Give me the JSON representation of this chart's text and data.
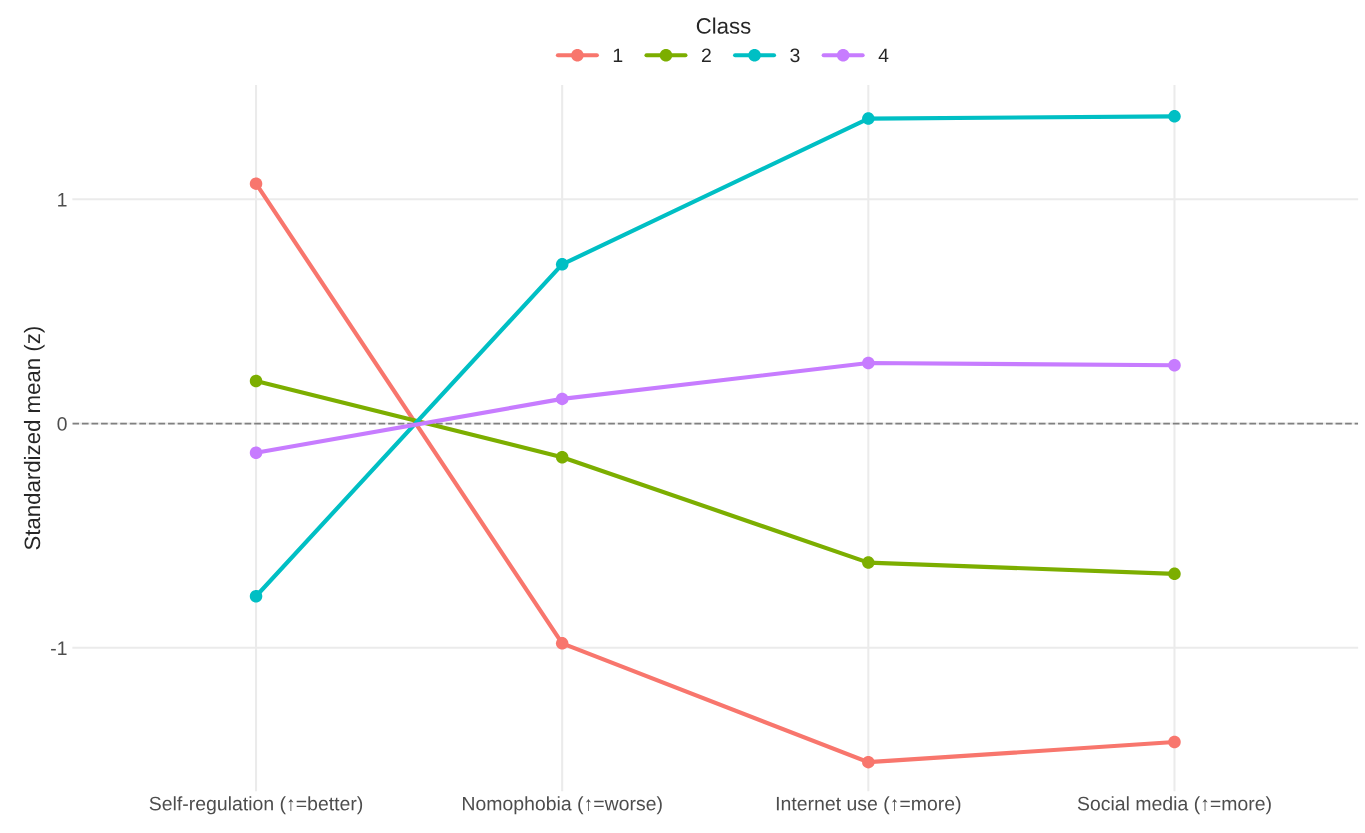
{
  "chart_data": {
    "type": "line",
    "ylabel": "Standardized mean (z)",
    "legend_title": "Class",
    "categories": [
      "Self-regulation (↑=better)",
      "Nomophobia (↑=worse)",
      "Internet use (↑=more)",
      "Social media (↑=more)"
    ],
    "series": [
      {
        "name": "1",
        "color": "#f8766d",
        "values": [
          1.07,
          -0.98,
          -1.51,
          -1.42
        ]
      },
      {
        "name": "2",
        "color": "#7cae00",
        "values": [
          0.19,
          -0.15,
          -0.62,
          -0.67
        ]
      },
      {
        "name": "3",
        "color": "#00bfc4",
        "values": [
          -0.77,
          0.71,
          1.36,
          1.37
        ]
      },
      {
        "name": "4",
        "color": "#c77cff",
        "values": [
          -0.13,
          0.11,
          0.27,
          0.26
        ]
      }
    ],
    "ylim": [
      -1.64,
      1.51
    ],
    "yticks": [
      -1,
      0,
      1
    ],
    "ref_lines": [
      {
        "axis": "y",
        "value": 0,
        "color": "#808080",
        "line_style": "dashed"
      }
    ],
    "grid": true,
    "legend": "top",
    "marker": "circle",
    "line_style": "solid"
  }
}
